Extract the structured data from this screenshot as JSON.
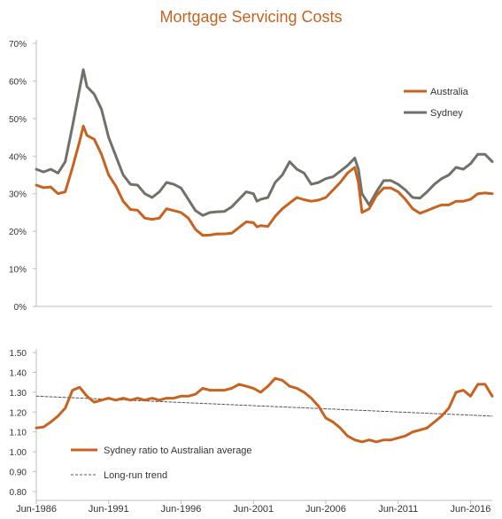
{
  "title": "Mortgage Servicing Costs",
  "colors": {
    "australia": "#c8621f",
    "sydney": "#6f7268",
    "trend": "#555555",
    "axis": "#bdbdbd",
    "title": "#c8621f"
  },
  "chart_data": [
    {
      "type": "line",
      "title": "Mortgage Servicing Costs",
      "ylim": [
        0,
        70
      ],
      "y_ticks": [
        "0%",
        "10%",
        "20%",
        "30%",
        "40%",
        "50%",
        "60%",
        "70%"
      ],
      "y_tick_values": [
        0,
        10,
        20,
        30,
        40,
        50,
        60,
        70
      ],
      "grid": false,
      "legend_position": "top-right",
      "series": [
        {
          "name": "Australia",
          "points": [
            [
              1986.5,
              32.3
            ],
            [
              1987.0,
              31.6
            ],
            [
              1987.5,
              31.8
            ],
            [
              1988.0,
              30.0
            ],
            [
              1988.5,
              30.5
            ],
            [
              1989.0,
              37.0
            ],
            [
              1989.5,
              44.0
            ],
            [
              1989.75,
              48.0
            ],
            [
              1990.0,
              45.5
            ],
            [
              1990.5,
              44.5
            ],
            [
              1991.0,
              40.5
            ],
            [
              1991.5,
              35.0
            ],
            [
              1992.0,
              32.0
            ],
            [
              1992.5,
              28.0
            ],
            [
              1993.0,
              25.8
            ],
            [
              1993.5,
              25.6
            ],
            [
              1994.0,
              23.5
            ],
            [
              1994.5,
              23.2
            ],
            [
              1995.0,
              23.5
            ],
            [
              1995.5,
              26.0
            ],
            [
              1996.0,
              25.5
            ],
            [
              1996.5,
              25.0
            ],
            [
              1997.0,
              23.5
            ],
            [
              1997.5,
              20.5
            ],
            [
              1998.0,
              18.9
            ],
            [
              1998.5,
              19.0
            ],
            [
              1999.0,
              19.3
            ],
            [
              1999.5,
              19.3
            ],
            [
              2000.0,
              19.5
            ],
            [
              2000.5,
              21.0
            ],
            [
              2001.0,
              22.5
            ],
            [
              2001.5,
              22.3
            ],
            [
              2001.75,
              21.2
            ],
            [
              2002.0,
              21.5
            ],
            [
              2002.5,
              21.3
            ],
            [
              2003.0,
              24.0
            ],
            [
              2003.5,
              26.0
            ],
            [
              2004.0,
              27.5
            ],
            [
              2004.5,
              29.0
            ],
            [
              2005.0,
              28.4
            ],
            [
              2005.5,
              28.0
            ],
            [
              2006.0,
              28.3
            ],
            [
              2006.5,
              29.0
            ],
            [
              2007.0,
              31.0
            ],
            [
              2007.5,
              33.0
            ],
            [
              2008.0,
              35.5
            ],
            [
              2008.5,
              37.0
            ],
            [
              2008.75,
              33.0
            ],
            [
              2009.0,
              25.0
            ],
            [
              2009.5,
              26.0
            ],
            [
              2010.0,
              29.5
            ],
            [
              2010.5,
              31.5
            ],
            [
              2011.0,
              31.5
            ],
            [
              2011.5,
              30.5
            ],
            [
              2012.0,
              28.5
            ],
            [
              2012.5,
              26.0
            ],
            [
              2013.0,
              24.8
            ],
            [
              2013.5,
              25.5
            ],
            [
              2014.0,
              26.3
            ],
            [
              2014.5,
              27.0
            ],
            [
              2015.0,
              27.0
            ],
            [
              2015.5,
              28.0
            ],
            [
              2016.0,
              28.0
            ],
            [
              2016.5,
              28.5
            ],
            [
              2017.0,
              30.0
            ],
            [
              2017.5,
              30.2
            ],
            [
              2018.0,
              30.0
            ]
          ]
        },
        {
          "name": "Sydney",
          "points": [
            [
              1986.5,
              36.5
            ],
            [
              1987.0,
              35.8
            ],
            [
              1987.5,
              36.5
            ],
            [
              1988.0,
              35.5
            ],
            [
              1988.5,
              38.5
            ],
            [
              1989.0,
              48.0
            ],
            [
              1989.5,
              58.0
            ],
            [
              1989.75,
              63.0
            ],
            [
              1990.0,
              58.5
            ],
            [
              1990.5,
              56.5
            ],
            [
              1991.0,
              52.5
            ],
            [
              1991.5,
              45.0
            ],
            [
              1992.0,
              40.0
            ],
            [
              1992.5,
              35.0
            ],
            [
              1993.0,
              32.5
            ],
            [
              1993.5,
              32.3
            ],
            [
              1994.0,
              30.0
            ],
            [
              1994.5,
              29.0
            ],
            [
              1995.0,
              30.5
            ],
            [
              1995.5,
              33.0
            ],
            [
              1996.0,
              32.5
            ],
            [
              1996.5,
              31.5
            ],
            [
              1997.0,
              28.5
            ],
            [
              1997.5,
              25.5
            ],
            [
              1998.0,
              24.2
            ],
            [
              1998.5,
              25.0
            ],
            [
              1999.0,
              25.2
            ],
            [
              1999.5,
              25.3
            ],
            [
              2000.0,
              26.5
            ],
            [
              2000.5,
              28.5
            ],
            [
              2001.0,
              30.5
            ],
            [
              2001.5,
              30.0
            ],
            [
              2001.75,
              28.0
            ],
            [
              2002.0,
              28.5
            ],
            [
              2002.5,
              29.0
            ],
            [
              2003.0,
              33.0
            ],
            [
              2003.5,
              35.0
            ],
            [
              2004.0,
              38.5
            ],
            [
              2004.5,
              36.5
            ],
            [
              2005.0,
              35.5
            ],
            [
              2005.5,
              32.5
            ],
            [
              2006.0,
              33.0
            ],
            [
              2006.5,
              34.0
            ],
            [
              2007.0,
              34.5
            ],
            [
              2007.5,
              36.0
            ],
            [
              2008.0,
              37.5
            ],
            [
              2008.5,
              39.5
            ],
            [
              2008.75,
              36.5
            ],
            [
              2009.0,
              30.0
            ],
            [
              2009.5,
              27.0
            ],
            [
              2010.0,
              30.5
            ],
            [
              2010.5,
              33.5
            ],
            [
              2011.0,
              33.5
            ],
            [
              2011.5,
              32.5
            ],
            [
              2012.0,
              31.0
            ],
            [
              2012.5,
              29.0
            ],
            [
              2013.0,
              28.8
            ],
            [
              2013.5,
              30.5
            ],
            [
              2014.0,
              32.5
            ],
            [
              2014.5,
              34.0
            ],
            [
              2015.0,
              35.0
            ],
            [
              2015.5,
              37.0
            ],
            [
              2016.0,
              36.5
            ],
            [
              2016.5,
              38.0
            ],
            [
              2017.0,
              40.5
            ],
            [
              2017.5,
              40.5
            ],
            [
              2018.0,
              38.5
            ]
          ]
        }
      ]
    },
    {
      "type": "line",
      "ylim": [
        0.8,
        1.5
      ],
      "y_ticks": [
        "0.80",
        "0.90",
        "1.00",
        "1.10",
        "1.20",
        "1.30",
        "1.40",
        "1.50"
      ],
      "y_tick_values": [
        0.8,
        0.9,
        1.0,
        1.1,
        1.2,
        1.3,
        1.4,
        1.5
      ],
      "x_ticks": [
        "Jun-1986",
        "Jun-1991",
        "Jun-1996",
        "Jun-2001",
        "Jun-2006",
        "Jun-2011",
        "Jun-2016"
      ],
      "x_tick_values": [
        1986.5,
        1991.5,
        1996.5,
        2001.5,
        2006.5,
        2011.5,
        2016.5
      ],
      "xlim": [
        1986.5,
        2018.0
      ],
      "grid": false,
      "legend_position": "bottom-left",
      "series": [
        {
          "name": "Sydney ratio to Australian average",
          "points": [
            [
              1986.5,
              1.12
            ],
            [
              1987.0,
              1.125
            ],
            [
              1987.5,
              1.15
            ],
            [
              1988.0,
              1.18
            ],
            [
              1988.5,
              1.22
            ],
            [
              1989.0,
              1.31
            ],
            [
              1989.5,
              1.325
            ],
            [
              1990.0,
              1.28
            ],
            [
              1990.5,
              1.25
            ],
            [
              1991.0,
              1.26
            ],
            [
              1991.5,
              1.27
            ],
            [
              1992.0,
              1.26
            ],
            [
              1992.5,
              1.27
            ],
            [
              1993.0,
              1.26
            ],
            [
              1993.5,
              1.27
            ],
            [
              1994.0,
              1.26
            ],
            [
              1994.5,
              1.27
            ],
            [
              1995.0,
              1.26
            ],
            [
              1995.5,
              1.27
            ],
            [
              1996.0,
              1.27
            ],
            [
              1996.5,
              1.28
            ],
            [
              1997.0,
              1.28
            ],
            [
              1997.5,
              1.29
            ],
            [
              1998.0,
              1.32
            ],
            [
              1998.5,
              1.31
            ],
            [
              1999.0,
              1.31
            ],
            [
              1999.5,
              1.31
            ],
            [
              2000.0,
              1.32
            ],
            [
              2000.5,
              1.34
            ],
            [
              2001.0,
              1.33
            ],
            [
              2001.5,
              1.32
            ],
            [
              2002.0,
              1.3
            ],
            [
              2002.5,
              1.33
            ],
            [
              2003.0,
              1.37
            ],
            [
              2003.5,
              1.36
            ],
            [
              2004.0,
              1.33
            ],
            [
              2004.5,
              1.32
            ],
            [
              2005.0,
              1.3
            ],
            [
              2005.5,
              1.27
            ],
            [
              2006.0,
              1.23
            ],
            [
              2006.5,
              1.17
            ],
            [
              2007.0,
              1.15
            ],
            [
              2007.5,
              1.12
            ],
            [
              2008.0,
              1.08
            ],
            [
              2008.5,
              1.06
            ],
            [
              2009.0,
              1.05
            ],
            [
              2009.5,
              1.06
            ],
            [
              2010.0,
              1.05
            ],
            [
              2010.5,
              1.06
            ],
            [
              2011.0,
              1.06
            ],
            [
              2011.5,
              1.07
            ],
            [
              2012.0,
              1.08
            ],
            [
              2012.5,
              1.1
            ],
            [
              2013.0,
              1.11
            ],
            [
              2013.5,
              1.12
            ],
            [
              2014.0,
              1.15
            ],
            [
              2014.5,
              1.18
            ],
            [
              2015.0,
              1.22
            ],
            [
              2015.5,
              1.3
            ],
            [
              2016.0,
              1.31
            ],
            [
              2016.5,
              1.28
            ],
            [
              2017.0,
              1.34
            ],
            [
              2017.5,
              1.34
            ],
            [
              2018.0,
              1.28
            ]
          ]
        },
        {
          "name": "Long-run trend",
          "points": [
            [
              1986.5,
              1.28
            ],
            [
              2018.0,
              1.18
            ]
          ]
        }
      ]
    }
  ]
}
